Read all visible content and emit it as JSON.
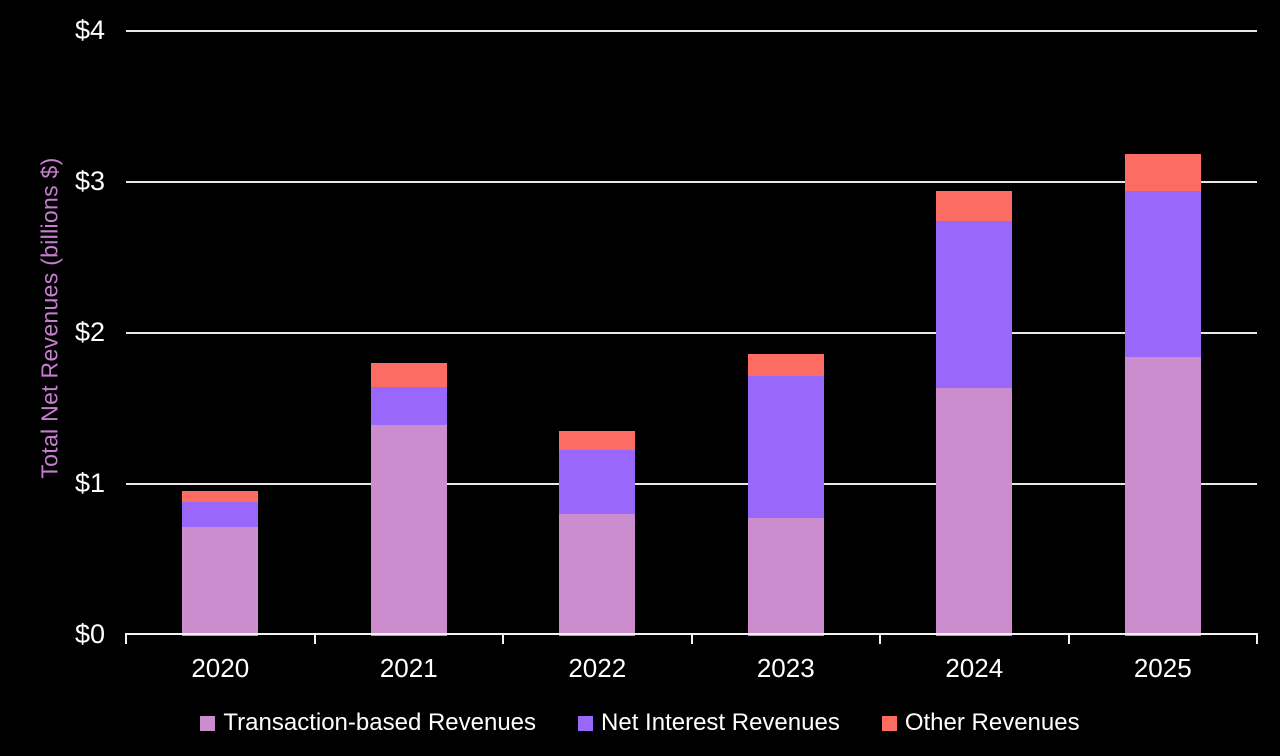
{
  "chart_data": {
    "type": "bar",
    "stacked": true,
    "title": "",
    "xlabel": "",
    "ylabel": "Total Net Revenues (billions $)",
    "categories": [
      "2020",
      "2021",
      "2022",
      "2023",
      "2024",
      "2025"
    ],
    "series": [
      {
        "name": "Transaction-based Revenues",
        "color": "#cb8dce",
        "values": [
          0.72,
          1.4,
          0.81,
          0.78,
          1.64,
          1.85
        ]
      },
      {
        "name": "Net Interest Revenues",
        "color": "#9a67fb",
        "values": [
          0.17,
          0.25,
          0.42,
          0.94,
          1.11,
          1.1
        ]
      },
      {
        "name": "Other Revenues",
        "color": "#fc6c62",
        "values": [
          0.07,
          0.16,
          0.13,
          0.15,
          0.2,
          0.24
        ]
      }
    ],
    "stacked_totals": [
      0.96,
      1.81,
      1.36,
      1.86,
      2.95,
      3.19
    ],
    "y_ticks": [
      {
        "value": 0,
        "label": "$0"
      },
      {
        "value": 1,
        "label": "$1"
      },
      {
        "value": 2,
        "label": "$2"
      },
      {
        "value": 3,
        "label": "$3"
      },
      {
        "value": 4,
        "label": "$4"
      }
    ],
    "ylim": [
      0,
      4
    ],
    "grid": true,
    "legend_position": "bottom",
    "colors": {
      "background": "#000000",
      "text": "#ffffff",
      "ylabel_text": "#c77ed1",
      "gridline": "#e8e8e8",
      "axis": "#f2f2f2"
    }
  }
}
